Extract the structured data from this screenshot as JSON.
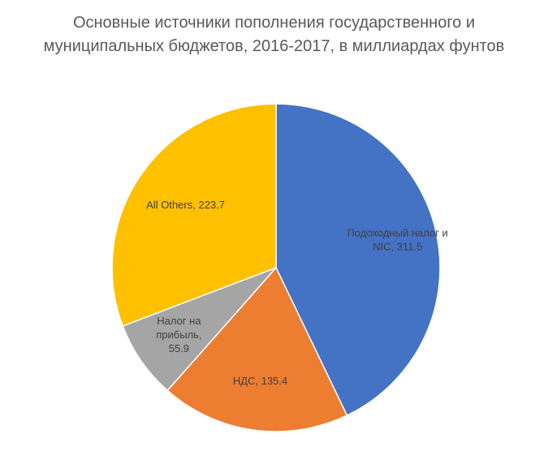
{
  "chart_data": {
    "type": "pie",
    "title_lines": [
      "Основные источники пополнения государственного и",
      "муниципальных бюджетов, 2016-2017, в миллиардах фунтов"
    ],
    "slices": [
      {
        "category": "Подоходный налог и NIC",
        "value": 311.5,
        "color": "#4472C4",
        "label_lines": [
          "Подоходный налог и",
          "NIC, 311.5"
        ]
      },
      {
        "category": "НДС",
        "value": 135.4,
        "color": "#ED7D31",
        "label_lines": [
          "НДС, 135.4"
        ]
      },
      {
        "category": "Налог на прибыль",
        "value": 55.9,
        "color": "#A5A5A5",
        "label_lines": [
          "Налог на",
          "прибыль,",
          "55.9"
        ]
      },
      {
        "category": "All Others",
        "value": 223.7,
        "color": "#FFC000",
        "label_lines": [
          "All Others, 223.7"
        ]
      }
    ],
    "start": "12 o'clock",
    "direction": "clockwise",
    "legend": "none"
  }
}
